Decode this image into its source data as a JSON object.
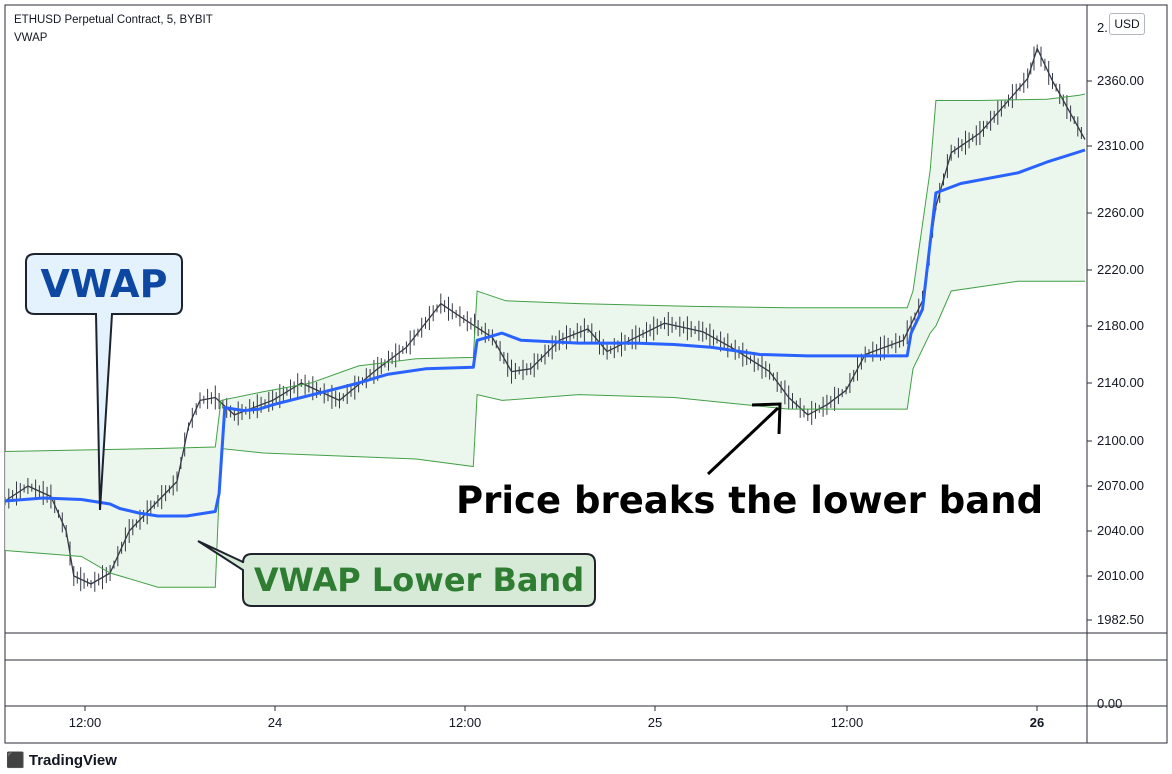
{
  "header": {
    "title": "ETHUSD Perpetual Contract, 5, BYBIT",
    "indicator": "VWAP"
  },
  "currency_button": "USD",
  "brand": {
    "name": "TradingView"
  },
  "annotations": {
    "vwap_label": "VWAP",
    "lower_band_label": "VWAP Lower Band",
    "breakout_text": "Price breaks the lower band"
  },
  "colors": {
    "vwap": "#2962ff",
    "band": "#43a047",
    "band_fill": "#e8f5e9",
    "vwap_callout_bg": "#e3f2fd",
    "vwap_callout_text": "#0d47a1",
    "lower_callout_bg": "#d7ead7",
    "lower_callout_text": "#2e7d32"
  },
  "chart_data": {
    "type": "line",
    "title": "ETHUSD Perpetual Contract, 5, BYBIT",
    "price_axis": {
      "ticks": [
        1982.5,
        2010,
        2040,
        2070,
        2100,
        2140,
        2180,
        2220,
        2260,
        2310,
        2360
      ],
      "tick_labels": [
        "1982.50",
        "2010.00",
        "2040.00",
        "2070.00",
        "2100.00",
        "2140.00",
        "2180.00",
        "2220.00",
        "2260.00",
        "2310.00",
        "2360.00"
      ],
      "top_partial_label": "2...00"
    },
    "oscillator_axis": {
      "tick_labels": [
        "0.00"
      ]
    },
    "time_axis": {
      "tick_labels": [
        "12:00",
        "24",
        "12:00",
        "25",
        "12:00",
        "26"
      ]
    },
    "series": [
      {
        "name": "VWAP",
        "points": [
          [
            0,
            2060
          ],
          [
            20,
            2062
          ],
          [
            40,
            2061
          ],
          [
            55,
            2058
          ],
          [
            60,
            2055
          ],
          [
            70,
            2052
          ],
          [
            80,
            2050
          ],
          [
            95,
            2050
          ],
          [
            110,
            2053
          ],
          [
            112,
            2065
          ],
          [
            115,
            2123
          ],
          [
            125,
            2121
          ],
          [
            133,
            2122
          ],
          [
            140,
            2125
          ],
          [
            155,
            2130
          ],
          [
            170,
            2135
          ],
          [
            185,
            2140
          ],
          [
            200,
            2146
          ],
          [
            220,
            2150
          ],
          [
            245,
            2151
          ],
          [
            247,
            2170
          ],
          [
            260,
            2175
          ],
          [
            270,
            2170
          ],
          [
            300,
            2168
          ],
          [
            330,
            2168
          ],
          [
            350,
            2167
          ],
          [
            370,
            2165
          ],
          [
            395,
            2160
          ],
          [
            420,
            2159
          ],
          [
            450,
            2159
          ],
          [
            472,
            2159
          ],
          [
            474,
            2175
          ],
          [
            480,
            2192
          ],
          [
            487,
            2275
          ],
          [
            500,
            2282
          ],
          [
            530,
            2290
          ],
          [
            545,
            2298
          ],
          [
            565,
            2307
          ]
        ]
      },
      {
        "name": "Upper Band",
        "points": [
          [
            0,
            2093
          ],
          [
            40,
            2094
          ],
          [
            80,
            2095
          ],
          [
            110,
            2096
          ],
          [
            113,
            2128
          ],
          [
            135,
            2134
          ],
          [
            160,
            2140
          ],
          [
            185,
            2152
          ],
          [
            215,
            2157
          ],
          [
            245,
            2158
          ],
          [
            247,
            2205
          ],
          [
            262,
            2198
          ],
          [
            300,
            2196
          ],
          [
            360,
            2194
          ],
          [
            410,
            2193
          ],
          [
            472,
            2193
          ],
          [
            475,
            2205
          ],
          [
            484,
            2292
          ],
          [
            487,
            2345
          ],
          [
            510,
            2345
          ],
          [
            545,
            2346
          ],
          [
            562,
            2349
          ],
          [
            565,
            2350
          ]
        ]
      },
      {
        "name": "Lower Band",
        "points": [
          [
            0,
            2027
          ],
          [
            40,
            2023
          ],
          [
            55,
            2012
          ],
          [
            80,
            2003
          ],
          [
            110,
            2003
          ],
          [
            113,
            2095
          ],
          [
            135,
            2092
          ],
          [
            175,
            2090
          ],
          [
            215,
            2088
          ],
          [
            245,
            2083
          ],
          [
            247,
            2132
          ],
          [
            260,
            2128
          ],
          [
            300,
            2132
          ],
          [
            350,
            2130
          ],
          [
            410,
            2122
          ],
          [
            472,
            2122
          ],
          [
            475,
            2150
          ],
          [
            484,
            2175
          ],
          [
            487,
            2180
          ],
          [
            495,
            2205
          ],
          [
            530,
            2212
          ],
          [
            565,
            2212
          ]
        ]
      },
      {
        "name": "Price",
        "points": [
          [
            0,
            2060
          ],
          [
            12,
            2070
          ],
          [
            24,
            2063
          ],
          [
            32,
            2040
          ],
          [
            36,
            2010
          ],
          [
            45,
            2005
          ],
          [
            55,
            2012
          ],
          [
            65,
            2040
          ],
          [
            80,
            2060
          ],
          [
            90,
            2073
          ],
          [
            96,
            2110
          ],
          [
            102,
            2128
          ],
          [
            110,
            2130
          ],
          [
            120,
            2118
          ],
          [
            140,
            2128
          ],
          [
            155,
            2140
          ],
          [
            175,
            2128
          ],
          [
            195,
            2150
          ],
          [
            210,
            2165
          ],
          [
            228,
            2196
          ],
          [
            240,
            2185
          ],
          [
            255,
            2172
          ],
          [
            265,
            2148
          ],
          [
            275,
            2150
          ],
          [
            290,
            2170
          ],
          [
            305,
            2178
          ],
          [
            315,
            2162
          ],
          [
            330,
            2172
          ],
          [
            345,
            2182
          ],
          [
            365,
            2176
          ],
          [
            380,
            2165
          ],
          [
            400,
            2148
          ],
          [
            410,
            2130
          ],
          [
            420,
            2118
          ],
          [
            430,
            2125
          ],
          [
            440,
            2135
          ],
          [
            450,
            2160
          ],
          [
            460,
            2165
          ],
          [
            470,
            2170
          ],
          [
            480,
            2198
          ],
          [
            487,
            2265
          ],
          [
            495,
            2305
          ],
          [
            510,
            2320
          ],
          [
            525,
            2345
          ],
          [
            535,
            2362
          ],
          [
            540,
            2385
          ],
          [
            548,
            2360
          ],
          [
            565,
            2315
          ]
        ]
      }
    ]
  }
}
